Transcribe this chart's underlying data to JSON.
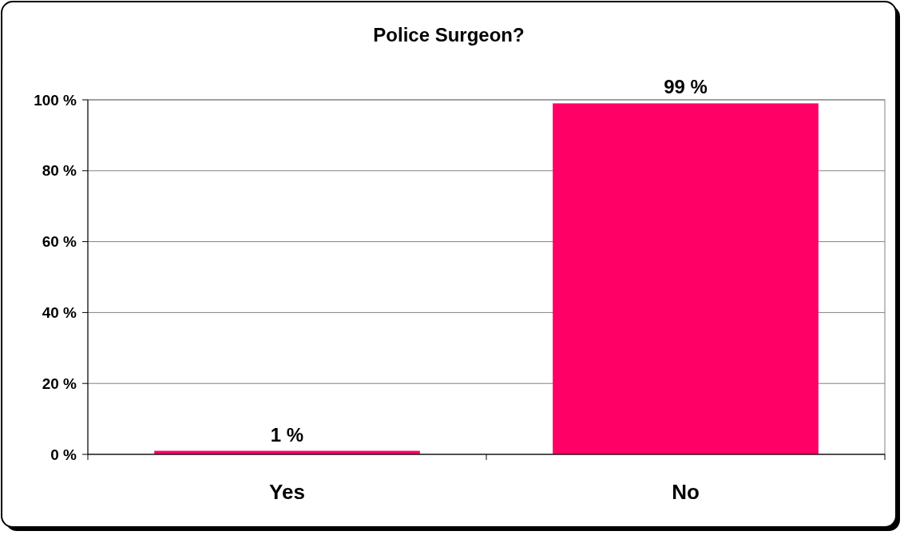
{
  "chart_data": {
    "type": "bar",
    "title": "Police Surgeon?",
    "categories": [
      "Yes",
      "No"
    ],
    "values": [
      1,
      99
    ],
    "color": "#ff0066",
    "value_labels": [
      "1 %",
      "99 %"
    ],
    "ylim": [
      0,
      100
    ],
    "yticks": [
      {
        "value": 0,
        "label": "0 %"
      },
      {
        "value": 20,
        "label": "20 %"
      },
      {
        "value": 40,
        "label": "40 %"
      },
      {
        "value": 60,
        "label": "60 %"
      },
      {
        "value": 80,
        "label": "80 %"
      },
      {
        "value": 100,
        "label": "100 %"
      }
    ],
    "grid": "y"
  }
}
